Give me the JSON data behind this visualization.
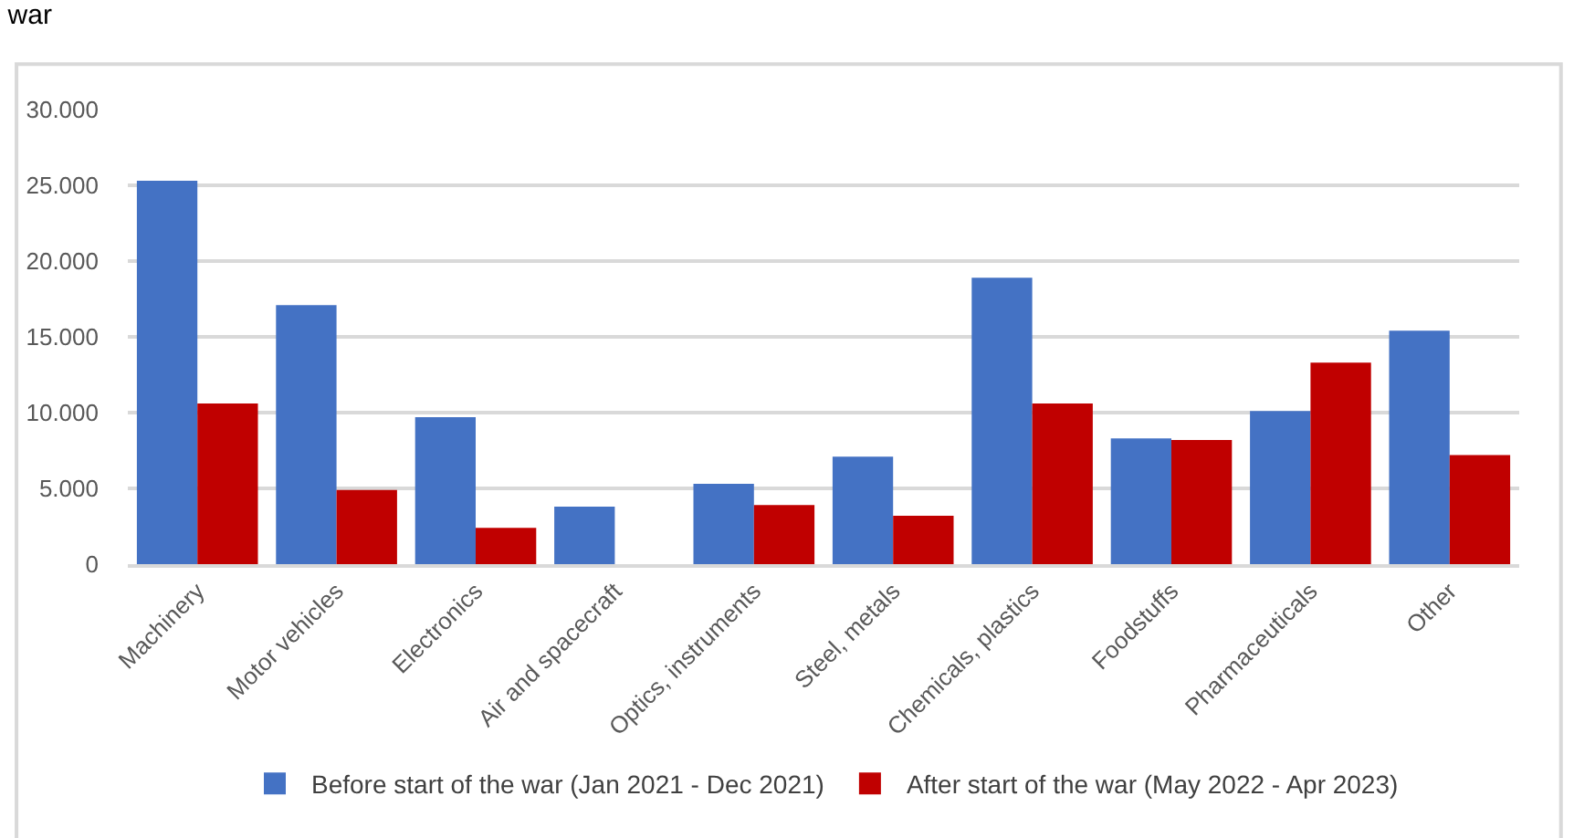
{
  "chart_data": {
    "type": "bar",
    "title": "war",
    "categories": [
      "Machinery",
      "Motor vehicles",
      "Electronics",
      "Air and spacecraft",
      "Optics, instruments",
      "Steel, metals",
      "Chemicals, plastics",
      "Foodstuffs",
      "Pharmaceuticals",
      "Other"
    ],
    "series": [
      {
        "name": "Before start of the war (Jan 2021 - Dec 2021)",
        "color": "#4472c4",
        "values": [
          25300,
          17100,
          9700,
          3800,
          5300,
          7100,
          18900,
          8300,
          10100,
          15400
        ]
      },
      {
        "name": "After start of the war (May 2022 - Apr 2023)",
        "color": "#c00000",
        "values": [
          10600,
          4900,
          2400,
          0,
          3900,
          3200,
          10600,
          8200,
          13300,
          7200
        ]
      }
    ],
    "ylim": [
      0,
      30000
    ],
    "yticks": [
      0,
      {
        "value": 5000,
        "label": "5.000"
      },
      {
        "value": 10000,
        "label": "10.000"
      },
      {
        "value": 15000,
        "label": "15.000"
      },
      {
        "value": 20000,
        "label": "20.000"
      },
      {
        "value": 25000,
        "label": "25.000"
      },
      {
        "value": 30000,
        "label": "30.000"
      }
    ],
    "grid": "y",
    "legend": "bottom"
  }
}
